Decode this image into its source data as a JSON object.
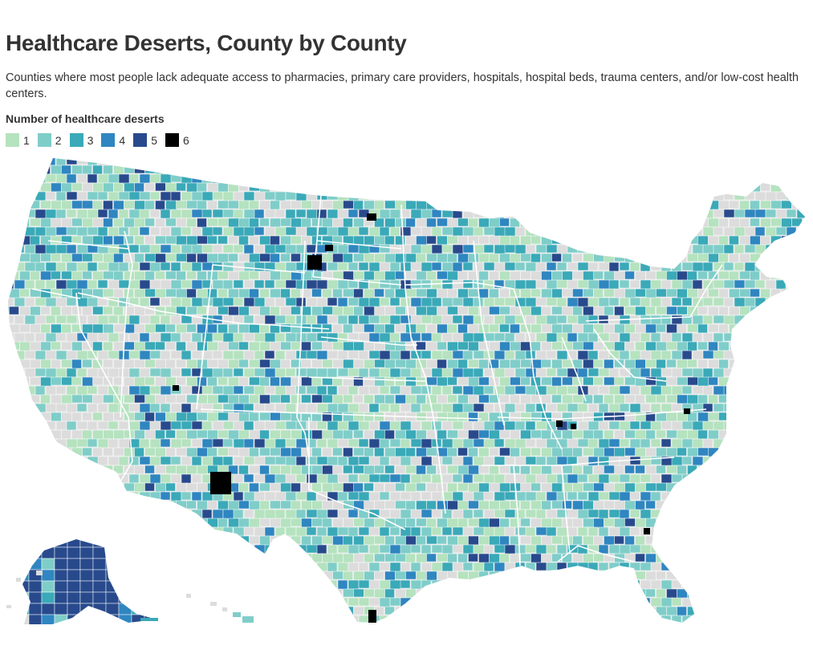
{
  "header": {
    "title": "Healthcare Deserts, County by County",
    "subtitle": "Counties where most people lack adequate access to pharmacies, primary care providers, hospitals, hospital beds, trauma centers, and/or low-cost health centers."
  },
  "legend": {
    "title": "Number of healthcare deserts",
    "items": [
      {
        "label": "1",
        "color": "#b5e2bf"
      },
      {
        "label": "2",
        "color": "#7fcdc9"
      },
      {
        "label": "3",
        "color": "#3aa9b8"
      },
      {
        "label": "4",
        "color": "#2f86c0"
      },
      {
        "label": "5",
        "color": "#284a8c"
      },
      {
        "label": "6",
        "color": "#000000"
      }
    ]
  },
  "colors": {
    "no_data": "#dcdcdc",
    "state_border": "#ffffff"
  }
}
